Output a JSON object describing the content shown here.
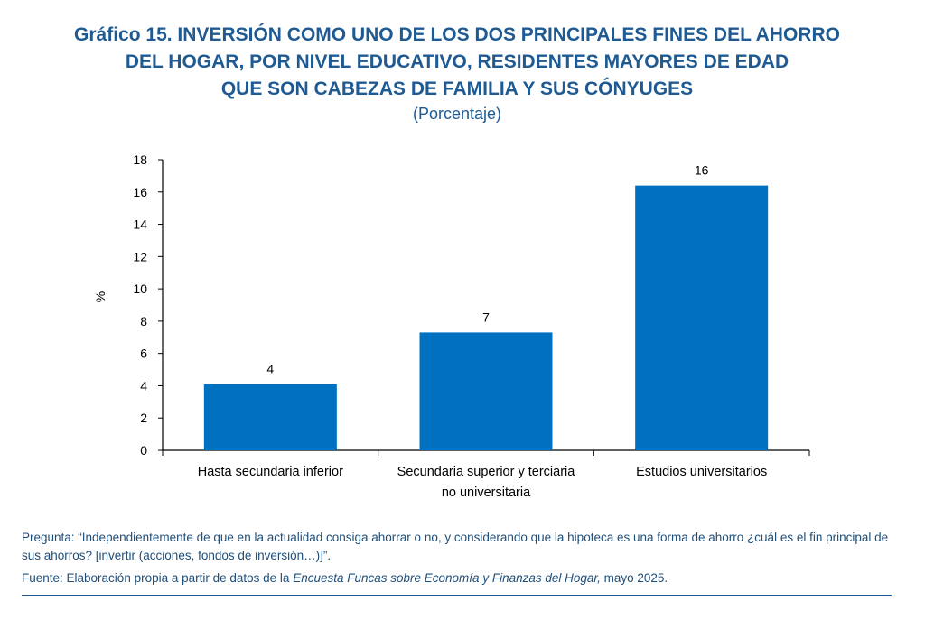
{
  "title_lines": [
    "Gráfico 15. INVERSIÓN COMO UNO DE LOS DOS PRINCIPALES FINES DEL AHORRO",
    "DEL HOGAR, POR NIVEL EDUCATIVO, RESIDENTES MAYORES DE EDAD",
    "QUE SON CABEZAS DE FAMILIA Y SUS CÓNYUGES"
  ],
  "subtitle": "(Porcentaje)",
  "chart_data": {
    "type": "bar",
    "categories": [
      [
        "Hasta secundaria inferior"
      ],
      [
        "Secundaria superior y terciaria",
        "no universitaria"
      ],
      [
        "Estudios universitarios"
      ]
    ],
    "values": [
      4.1,
      7.3,
      16.4
    ],
    "data_labels": [
      "4",
      "7",
      "16"
    ],
    "ylabel": "%",
    "ylim": [
      0,
      18
    ],
    "yticks": [
      0,
      2,
      4,
      6,
      8,
      10,
      12,
      14,
      16,
      18
    ],
    "grid": false,
    "bar_color": "#0070c0"
  },
  "notes": {
    "question": "Pregunta: “Independientemente de que en la actualidad consiga ahorrar o no, y considerando que la hipoteca es una forma de ahorro ¿cuál es el fin principal de sus ahorros? [invertir (acciones, fondos de inversión…)]”.",
    "source_prefix": "Fuente: Elaboración propia a partir de datos de la ",
    "source_italic": "Encuesta Funcas sobre Economía y Finanzas del Hogar,",
    "source_suffix": " mayo 2025."
  },
  "colors": {
    "title": "#1f5a92",
    "notes": "#1f4e79",
    "bar": "#0070c0"
  }
}
